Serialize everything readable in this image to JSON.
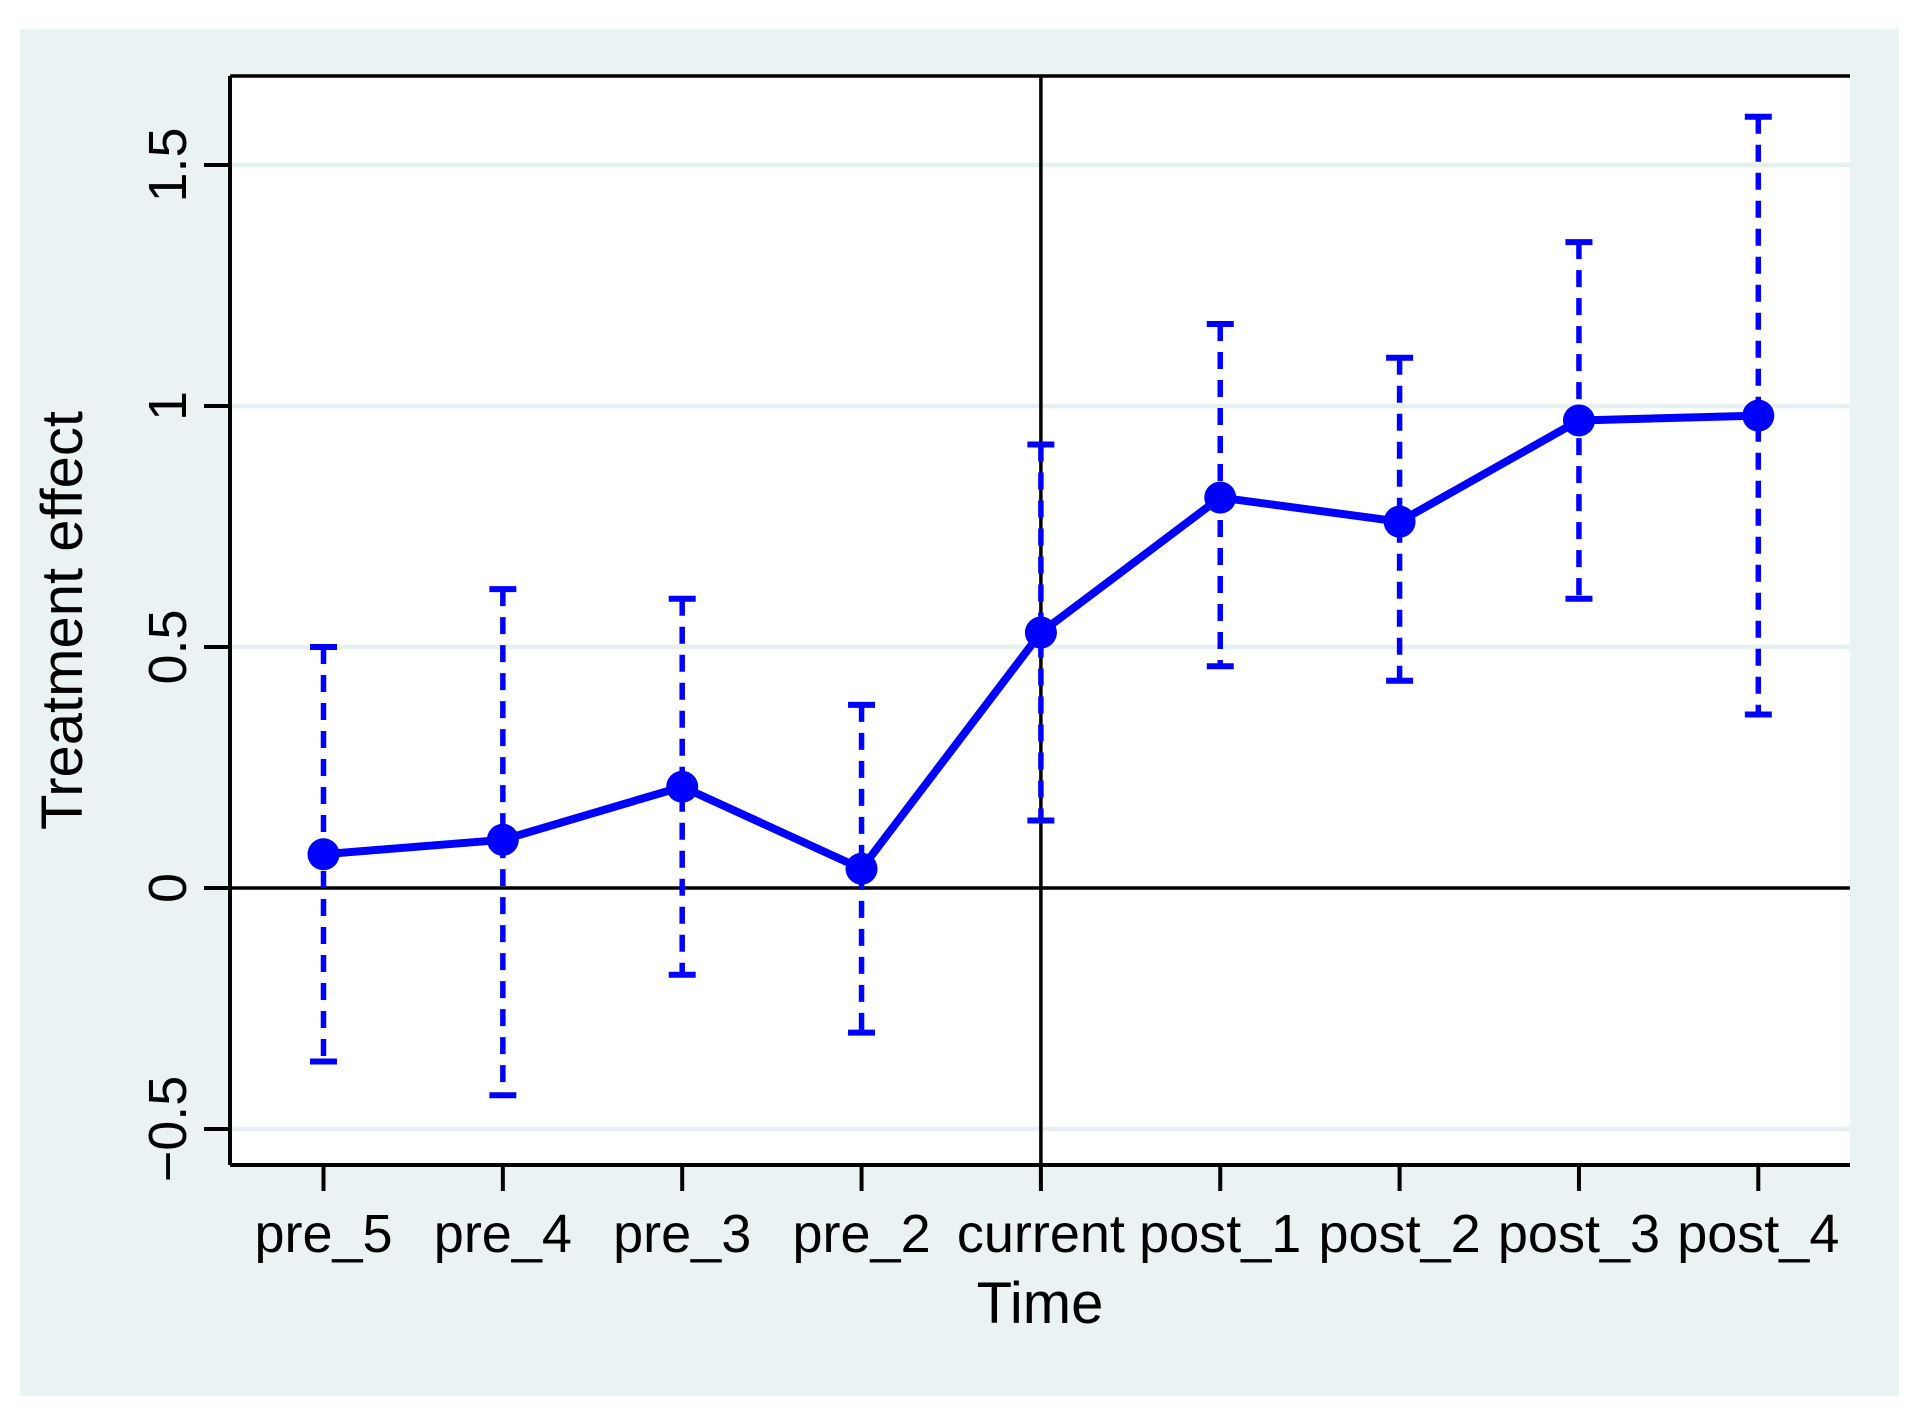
{
  "chart_data": {
    "type": "line",
    "title": "",
    "xlabel": "Time",
    "ylabel": "Treatment effect",
    "categories": [
      "pre_5",
      "pre_4",
      "pre_3",
      "pre_2",
      "current",
      "post_1",
      "post_2",
      "post_3",
      "post_4"
    ],
    "series": [
      {
        "name": "Treatment effect",
        "values": [
          0.07,
          0.1,
          0.21,
          0.04,
          0.53,
          0.81,
          0.76,
          0.97,
          0.98
        ]
      }
    ],
    "ci_low": [
      -0.36,
      -0.43,
      -0.18,
      -0.3,
      0.14,
      0.46,
      0.43,
      0.6,
      0.36
    ],
    "ci_high": [
      0.5,
      0.62,
      0.6,
      0.38,
      0.92,
      1.17,
      1.1,
      1.34,
      1.6
    ],
    "y_ticks": [
      -0.5,
      0,
      0.5,
      1,
      1.5
    ],
    "y_tick_labels": [
      "−0.5",
      "0",
      "0.5",
      "1",
      "1.5"
    ],
    "ylim": [
      -0.575,
      1.685
    ],
    "grid": true,
    "legend_position": "none",
    "reference_lines": {
      "horizontal_at": 0,
      "vertical_at_category": "current"
    },
    "colors": {
      "series": "#0000ff",
      "axis": "#000000",
      "panel_bg": "#eaf2f3",
      "plot_bg": "#ffffff",
      "gridline": "#e6f0f1"
    }
  }
}
